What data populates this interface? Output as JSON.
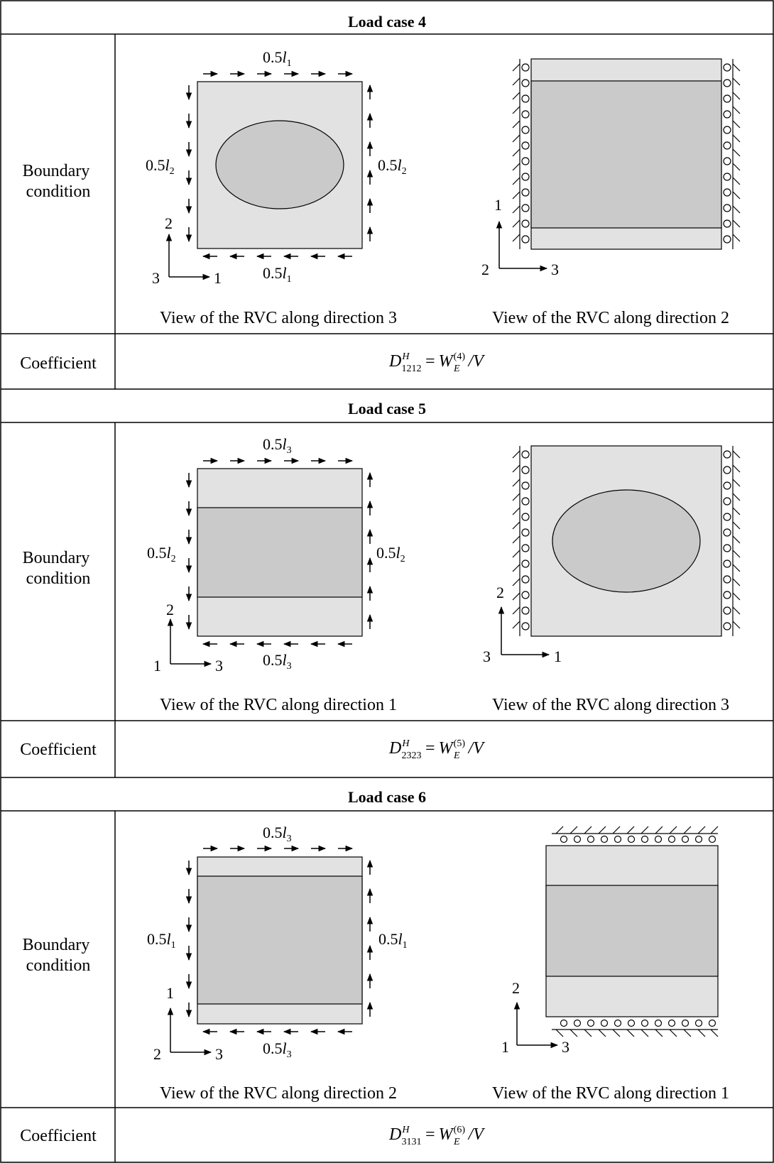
{
  "table": {
    "row_label_boundary": [
      "Boundary",
      "condition"
    ],
    "row_label_coefficient": "Coefficient",
    "load_cases": [
      {
        "title": "Load case 4",
        "left_caption": "View of the RVC along direction 3",
        "right_caption": "View of the RVC along direction 2",
        "left_top_dim": {
          "coef": "0.5",
          "var": "l",
          "sub": "1"
        },
        "left_side_dim": {
          "coef": "0.5",
          "var": "l",
          "sub": "2"
        },
        "left_bottom_dim": {
          "coef": "0.5",
          "var": "l",
          "sub": "1"
        },
        "left_axes": {
          "vertical": "2",
          "origin": "3",
          "horizontal": "1"
        },
        "right_axes": {
          "vertical": "1",
          "origin": "2",
          "horizontal": "3"
        },
        "coefficient": {
          "lhs": "D",
          "sup": "H",
          "sub": "1212",
          "rhs": "W",
          "rhs_sup": "(4)",
          "rhs_sub": "E",
          "den": "V"
        }
      },
      {
        "title": "Load case 5",
        "left_caption": "View of the RVC along direction 1",
        "right_caption": "View of the RVC along direction 3",
        "left_top_dim": {
          "coef": "0.5",
          "var": "l",
          "sub": "3"
        },
        "left_side_dim": {
          "coef": "0.5",
          "var": "l",
          "sub": "2"
        },
        "left_bottom_dim": {
          "coef": "0.5",
          "var": "l",
          "sub": "3"
        },
        "left_axes": {
          "vertical": "2",
          "origin": "1",
          "horizontal": "3"
        },
        "right_axes": {
          "vertical": "2",
          "origin": "3",
          "horizontal": "1"
        },
        "coefficient": {
          "lhs": "D",
          "sup": "H",
          "sub": "2323",
          "rhs": "W",
          "rhs_sup": "(5)",
          "rhs_sub": "E",
          "den": "V"
        }
      },
      {
        "title": "Load case 6",
        "left_caption": "View of the RVC along direction 2",
        "right_caption": "View of the RVC along direction 1",
        "left_top_dim": {
          "coef": "0.5",
          "var": "l",
          "sub": "3"
        },
        "left_side_dim": {
          "coef": "0.5",
          "var": "l",
          "sub": "1"
        },
        "left_bottom_dim": {
          "coef": "0.5",
          "var": "l",
          "sub": "3"
        },
        "left_axes": {
          "vertical": "1",
          "origin": "2",
          "horizontal": "3"
        },
        "right_axes": {
          "vertical": "2",
          "origin": "1",
          "horizontal": "3"
        },
        "coefficient": {
          "lhs": "D",
          "sup": "H",
          "sub": "3131",
          "rhs": "W",
          "rhs_sup": "(6)",
          "rhs_sub": "E",
          "den": "V"
        }
      }
    ]
  },
  "colors": {
    "light_fill": "#e2e2e2",
    "dark_fill": "#cacaca",
    "line": "#000000"
  }
}
